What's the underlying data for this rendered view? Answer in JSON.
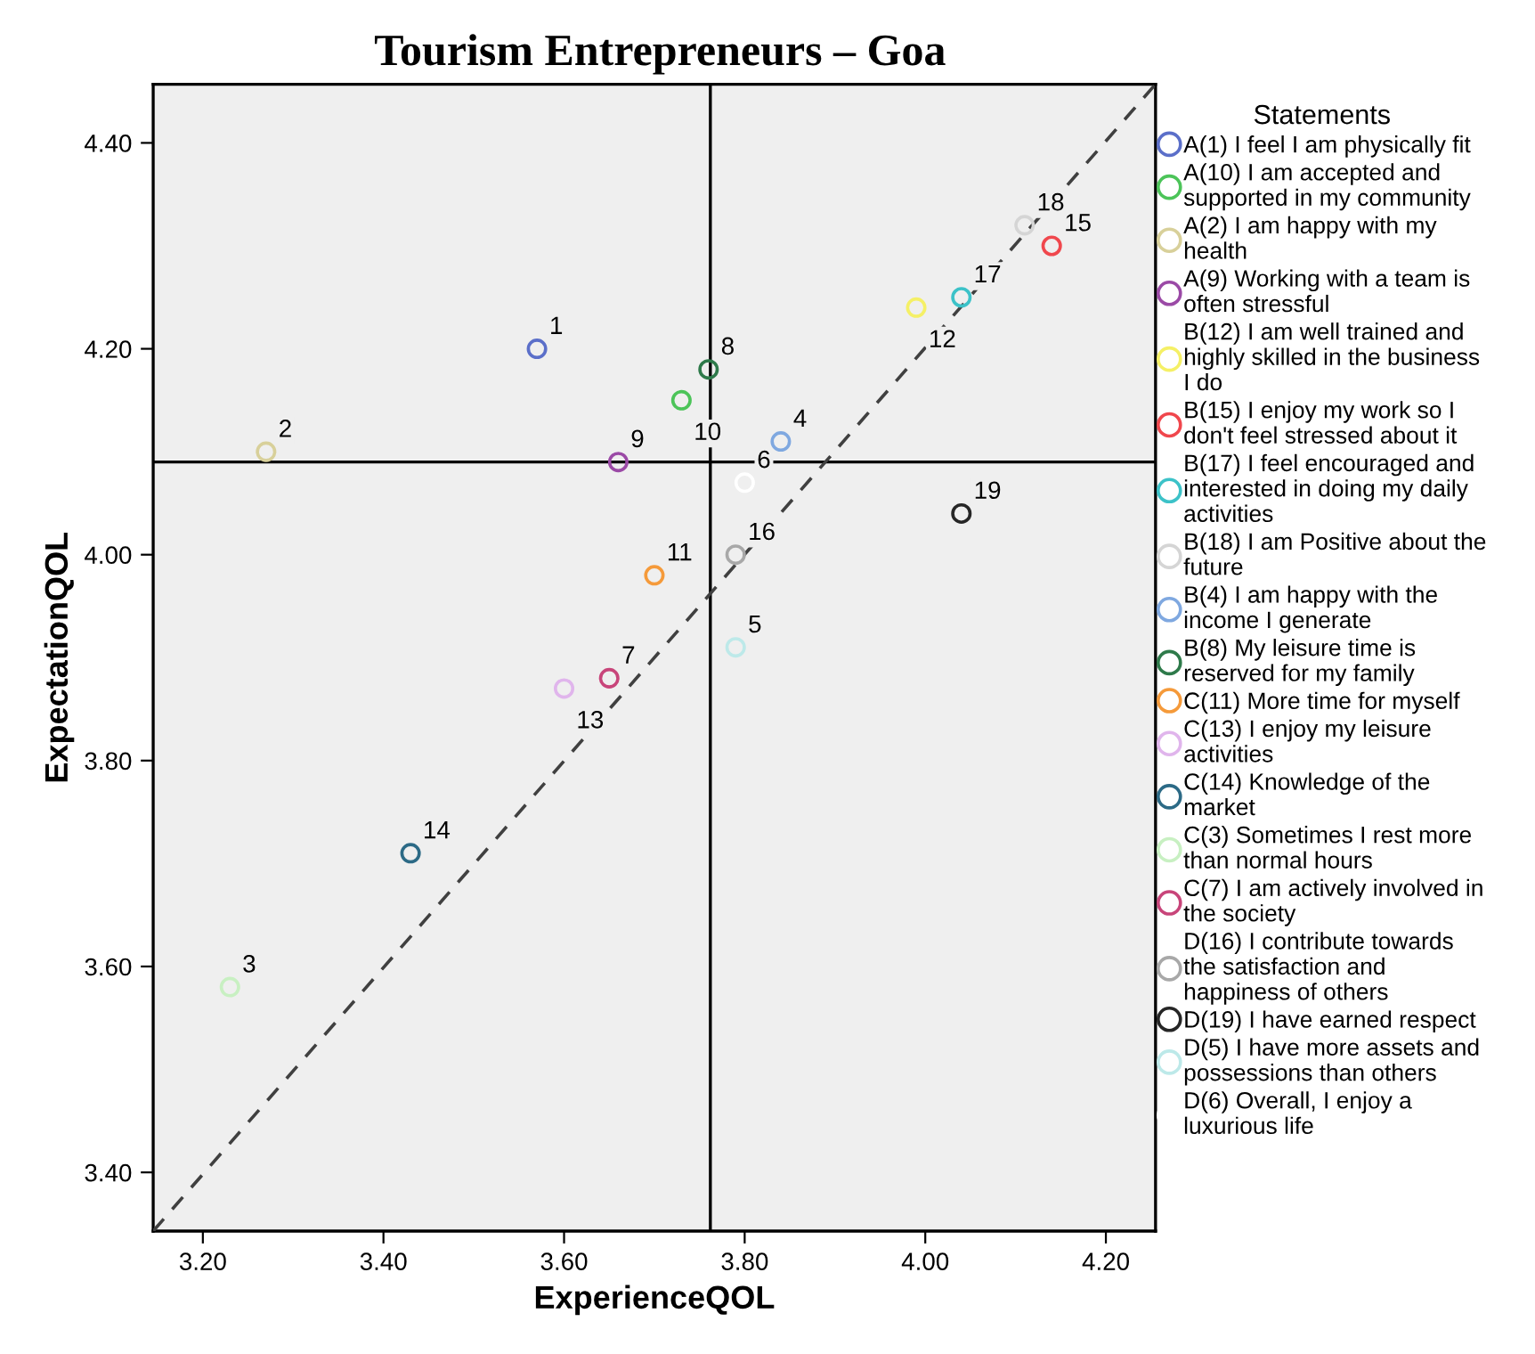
{
  "chart_data": {
    "type": "scatter",
    "title": "Tourism Entrepreneurs – Goa",
    "xlabel": "ExperienceQOL",
    "ylabel": "ExpectationQOL",
    "legend_title": "Statements",
    "legend": "right",
    "grid": false,
    "marker": "circle",
    "xlim": [
      3.145,
      4.255
    ],
    "ylim": [
      3.343,
      4.457
    ],
    "xticks": [
      {
        "value": 3.2,
        "label": "3.20"
      },
      {
        "value": 3.4,
        "label": "3.40"
      },
      {
        "value": 3.6,
        "label": "3.60"
      },
      {
        "value": 3.8,
        "label": "3.80"
      },
      {
        "value": 4.0,
        "label": "4.00"
      },
      {
        "value": 4.2,
        "label": "4.20"
      }
    ],
    "yticks": [
      {
        "value": 3.4,
        "label": "3.40"
      },
      {
        "value": 3.6,
        "label": "3.60"
      },
      {
        "value": 3.8,
        "label": "3.80"
      },
      {
        "value": 4.0,
        "label": "4.00"
      },
      {
        "value": 4.2,
        "label": "4.20"
      },
      {
        "value": 4.4,
        "label": "4.40"
      }
    ],
    "ref_lines": [
      {
        "axis": "x",
        "value": 3.762,
        "color": "#000000"
      },
      {
        "axis": "y",
        "value": 4.09,
        "color": "#000000"
      }
    ],
    "series": [
      {
        "name": "A(1) I feel I am physically fit",
        "color": "#5b6fc9",
        "x": [
          3.57
        ],
        "values": [
          4.2
        ]
      },
      {
        "name": "A(10) I am accepted and\nsupported in my community",
        "color": "#4cc459",
        "x": [
          3.73
        ],
        "values": [
          4.15
        ]
      },
      {
        "name": "A(2) I am happy with my\nhealth",
        "color": "#d8d09a",
        "x": [
          3.27
        ],
        "values": [
          4.1
        ]
      },
      {
        "name": "A(9) Working with a team is\noften stressful",
        "color": "#9b4aa6",
        "x": [
          3.66
        ],
        "values": [
          4.09
        ]
      },
      {
        "name": "B(12) I am well trained and\nhighly skilled in the business\nI do",
        "color": "#f5f066",
        "x": [
          3.99
        ],
        "values": [
          4.24
        ]
      },
      {
        "name": "B(15) I enjoy my work so I\ndon't feel stressed about it",
        "color": "#f0474d",
        "x": [
          4.14
        ],
        "values": [
          4.3
        ]
      },
      {
        "name": "B(17) I feel encouraged and\ninterested in doing my daily\nactivities",
        "color": "#3cc2c8",
        "x": [
          4.04
        ],
        "values": [
          4.25
        ]
      },
      {
        "name": "B(18) I am Positive about the\nfuture",
        "color": "#d5d5d5",
        "x": [
          4.11
        ],
        "values": [
          4.32
        ]
      },
      {
        "name": "B(4) I am happy with the\nincome I generate",
        "color": "#7fa8e0",
        "x": [
          3.84
        ],
        "values": [
          4.11
        ]
      },
      {
        "name": "B(8) My leisure time is\nreserved for my family",
        "color": "#2e7a4a",
        "x": [
          3.76
        ],
        "values": [
          4.18
        ]
      },
      {
        "name": "C(11) More time for myself",
        "color": "#f59a3a",
        "x": [
          3.7
        ],
        "values": [
          3.98
        ]
      },
      {
        "name": "C(13) I enjoy my leisure\nactivities",
        "color": "#e0b5ec",
        "x": [
          3.6
        ],
        "values": [
          3.87
        ]
      },
      {
        "name": "C(14) Knowledge of the\nmarket",
        "color": "#2c6a86",
        "x": [
          3.43
        ],
        "values": [
          3.71
        ]
      },
      {
        "name": "C(3) Sometimes I rest more\nthan normal hours",
        "color": "#c8f0c2",
        "x": [
          3.23
        ],
        "values": [
          3.58
        ]
      },
      {
        "name": "C(7) I am actively involved in\nthe society",
        "color": "#c8457a",
        "x": [
          3.65
        ],
        "values": [
          3.88
        ]
      },
      {
        "name": "D(16) I contribute towards\nthe satisfaction and\nhappiness of others",
        "color": "#a8a8a8",
        "x": [
          3.79
        ],
        "values": [
          4.0
        ]
      },
      {
        "name": "D(19) I have earned respect",
        "color": "#262626",
        "x": [
          4.04
        ],
        "values": [
          4.04
        ]
      },
      {
        "name": "D(5) I have more assets and\npossessions than others",
        "color": "#bde9e9",
        "x": [
          3.79
        ],
        "values": [
          3.91
        ]
      },
      {
        "name": "D(6) Overall, I enjoy a\nluxurious life",
        "color": "#ffffff",
        "x": [
          3.8
        ],
        "values": [
          4.07
        ]
      },
      {
        "type": "line",
        "color": "#404040",
        "line_style": "dashed",
        "marker": "none",
        "x": [
          3.145,
          4.255
        ],
        "values": [
          3.343,
          4.457
        ]
      }
    ],
    "annotations": [
      {
        "text": "1",
        "x": 3.57,
        "y": 4.2
      },
      {
        "text": "2",
        "x": 3.27,
        "y": 4.1
      },
      {
        "text": "3",
        "x": 3.23,
        "y": 3.58
      },
      {
        "text": "4",
        "x": 3.84,
        "y": 4.11
      },
      {
        "text": "5",
        "x": 3.79,
        "y": 3.91
      },
      {
        "text": "6",
        "x": 3.8,
        "y": 4.07
      },
      {
        "text": "7",
        "x": 3.65,
        "y": 3.88
      },
      {
        "text": "8",
        "x": 3.76,
        "y": 4.18
      },
      {
        "text": "9",
        "x": 3.66,
        "y": 4.09
      },
      {
        "text": "10",
        "x": 3.73,
        "y": 4.15
      },
      {
        "text": "11",
        "x": 3.7,
        "y": 3.98
      },
      {
        "text": "12",
        "x": 3.99,
        "y": 4.24
      },
      {
        "text": "13",
        "x": 3.6,
        "y": 3.87
      },
      {
        "text": "14",
        "x": 3.43,
        "y": 3.71
      },
      {
        "text": "15",
        "x": 4.14,
        "y": 4.3
      },
      {
        "text": "16",
        "x": 3.79,
        "y": 4.0
      },
      {
        "text": "17",
        "x": 4.04,
        "y": 4.25
      },
      {
        "text": "18",
        "x": 4.11,
        "y": 4.32
      },
      {
        "text": "19",
        "x": 4.04,
        "y": 4.04
      }
    ]
  }
}
